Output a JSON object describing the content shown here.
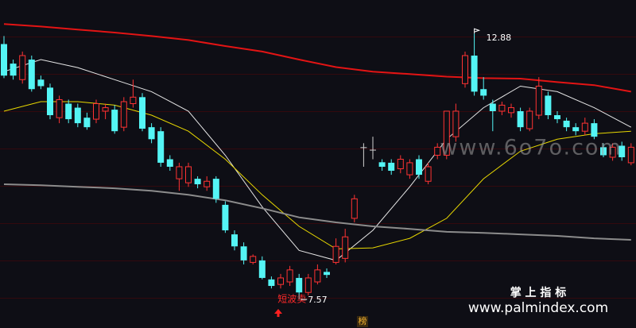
{
  "chart_data": {
    "type": "candlestick",
    "open": [
      12.67,
      12.28,
      11.96,
      12.36,
      11.96,
      11.8,
      11.2,
      11.48,
      11.4,
      11.2,
      11.17,
      11.33,
      11.36,
      11.01,
      11.48,
      11.61,
      11.01,
      10.93,
      10.37,
      9.98,
      9.9,
      9.98,
      9.82,
      9.98,
      9.46,
      8.87,
      8.63,
      8.31,
      8.35,
      7.97,
      7.87,
      7.92,
      8.0,
      7.71,
      7.92,
      8.12,
      8.31,
      8.39,
      9.19,
      10.61,
      10.56,
      10.31,
      10.3,
      10.18,
      10.06,
      10.37,
      9.93,
      10.45,
      10.45,
      10.82,
      11.88,
      12.44,
      11.77,
      11.48,
      11.33,
      11.3,
      11.33,
      10.98,
      11.25,
      11.64,
      11.25,
      11.14,
      11.01,
      10.93,
      11.09,
      10.61,
      10.41,
      10.64,
      10.3
    ],
    "high": [
      12.83,
      12.36,
      12.52,
      12.44,
      12.04,
      11.88,
      11.64,
      11.56,
      11.48,
      11.3,
      11.56,
      11.48,
      11.45,
      11.61,
      11.96,
      11.69,
      11.09,
      11.01,
      10.45,
      10.3,
      10.3,
      10.03,
      10.03,
      10.03,
      9.53,
      8.95,
      8.71,
      8.47,
      8.43,
      8.03,
      8.08,
      8.24,
      8.08,
      8.08,
      8.27,
      8.19,
      8.79,
      8.98,
      9.66,
      10.69,
      10.82,
      10.37,
      10.37,
      10.45,
      10.37,
      10.45,
      10.3,
      10.69,
      11.33,
      11.48,
      12.52,
      12.88,
      12.01,
      11.56,
      11.52,
      11.48,
      11.4,
      11.4,
      12.01,
      11.72,
      11.33,
      11.2,
      11.09,
      11.2,
      11.17,
      10.69,
      10.69,
      10.72,
      10.69
    ],
    "low": [
      11.99,
      11.96,
      11.88,
      11.72,
      11.77,
      11.17,
      11.09,
      11.09,
      11.01,
      10.96,
      11.09,
      11.17,
      10.88,
      10.93,
      11.4,
      10.93,
      10.69,
      10.22,
      10.14,
      9.74,
      9.82,
      9.79,
      9.74,
      9.5,
      8.9,
      8.55,
      8.27,
      8.27,
      7.97,
      7.79,
      7.79,
      7.84,
      7.57,
      7.65,
      7.87,
      8.0,
      8.27,
      8.31,
      9.11,
      10.22,
      10.37,
      10.14,
      10.06,
      10.09,
      9.98,
      9.98,
      9.87,
      10.37,
      10.37,
      10.72,
      11.8,
      11.64,
      11.56,
      10.93,
      11.25,
      11.2,
      10.93,
      10.93,
      11.17,
      11.17,
      11.09,
      10.93,
      10.85,
      10.85,
      10.77,
      10.41,
      10.34,
      10.34,
      10.25
    ],
    "close": [
      12.04,
      12.04,
      12.44,
      11.77,
      11.83,
      11.25,
      11.56,
      11.17,
      11.09,
      11.01,
      11.48,
      11.4,
      10.93,
      11.52,
      11.61,
      10.98,
      10.77,
      10.3,
      10.22,
      10.22,
      10.22,
      9.87,
      9.93,
      9.58,
      8.95,
      8.63,
      8.35,
      8.43,
      8.0,
      7.84,
      8.0,
      8.16,
      7.71,
      8.0,
      8.16,
      8.06,
      8.63,
      8.82,
      9.58,
      10.61,
      10.56,
      10.22,
      10.14,
      10.37,
      10.3,
      10.06,
      10.22,
      10.61,
      11.33,
      11.33,
      12.44,
      11.72,
      11.64,
      11.33,
      11.45,
      11.4,
      11.01,
      11.33,
      11.83,
      11.25,
      11.17,
      11.01,
      10.93,
      11.09,
      10.82,
      10.45,
      10.61,
      10.41,
      10.61
    ],
    "up_color": "#ff3333",
    "down_color": "#54f5f5",
    "flat_color": "#d0d0d0",
    "ylim": [
      7,
      13.55
    ],
    "lines": [
      {
        "color": "#e31414",
        "width": 2,
        "x": [
          0,
          4,
          8,
          12,
          16,
          20,
          24,
          28,
          32,
          36,
          40,
          44,
          48,
          52,
          56,
          60,
          64,
          68
        ],
        "values": [
          13.07,
          13.02,
          12.96,
          12.9,
          12.83,
          12.75,
          12.63,
          12.52,
          12.36,
          12.21,
          12.12,
          12.07,
          12.02,
          11.99,
          11.98,
          11.91,
          11.85,
          11.72
        ]
      },
      {
        "color": "#e6e6e6",
        "width": 1,
        "x": [
          0,
          4,
          8,
          12,
          16,
          20,
          24,
          28,
          32,
          36,
          40,
          44,
          48,
          52,
          56,
          60,
          64,
          68
        ],
        "values": [
          12.12,
          12.36,
          12.2,
          11.96,
          11.72,
          11.33,
          10.45,
          9.42,
          8.55,
          8.35,
          8.95,
          9.82,
          10.77,
          11.4,
          11.83,
          11.72,
          11.4,
          11.01
        ]
      },
      {
        "color": "#e8d800",
        "width": 1,
        "x": [
          0,
          4,
          8,
          12,
          16,
          20,
          24,
          28,
          32,
          36,
          40,
          44,
          48,
          52,
          56,
          60,
          64,
          68
        ],
        "values": [
          11.33,
          11.52,
          11.52,
          11.45,
          11.25,
          10.93,
          10.37,
          9.66,
          9.03,
          8.58,
          8.6,
          8.79,
          9.19,
          9.98,
          10.53,
          10.77,
          10.88,
          10.93
        ]
      },
      {
        "color": "#8c8c8c",
        "width": 2,
        "x": [
          0,
          4,
          8,
          12,
          16,
          20,
          24,
          28,
          32,
          36,
          40,
          44,
          48,
          52,
          56,
          60,
          64,
          68
        ],
        "values": [
          9.87,
          9.85,
          9.82,
          9.79,
          9.74,
          9.66,
          9.55,
          9.39,
          9.21,
          9.11,
          9.03,
          8.98,
          8.92,
          8.9,
          8.87,
          8.84,
          8.79,
          8.76
        ]
      }
    ],
    "high_label": 12.88,
    "low_label": 7.57,
    "signal": "短波卖"
  },
  "watermark": "www.6o7o.com",
  "brand": "掌 上 指 标",
  "brand_url": "www.palmindex.com",
  "badge": "榜"
}
